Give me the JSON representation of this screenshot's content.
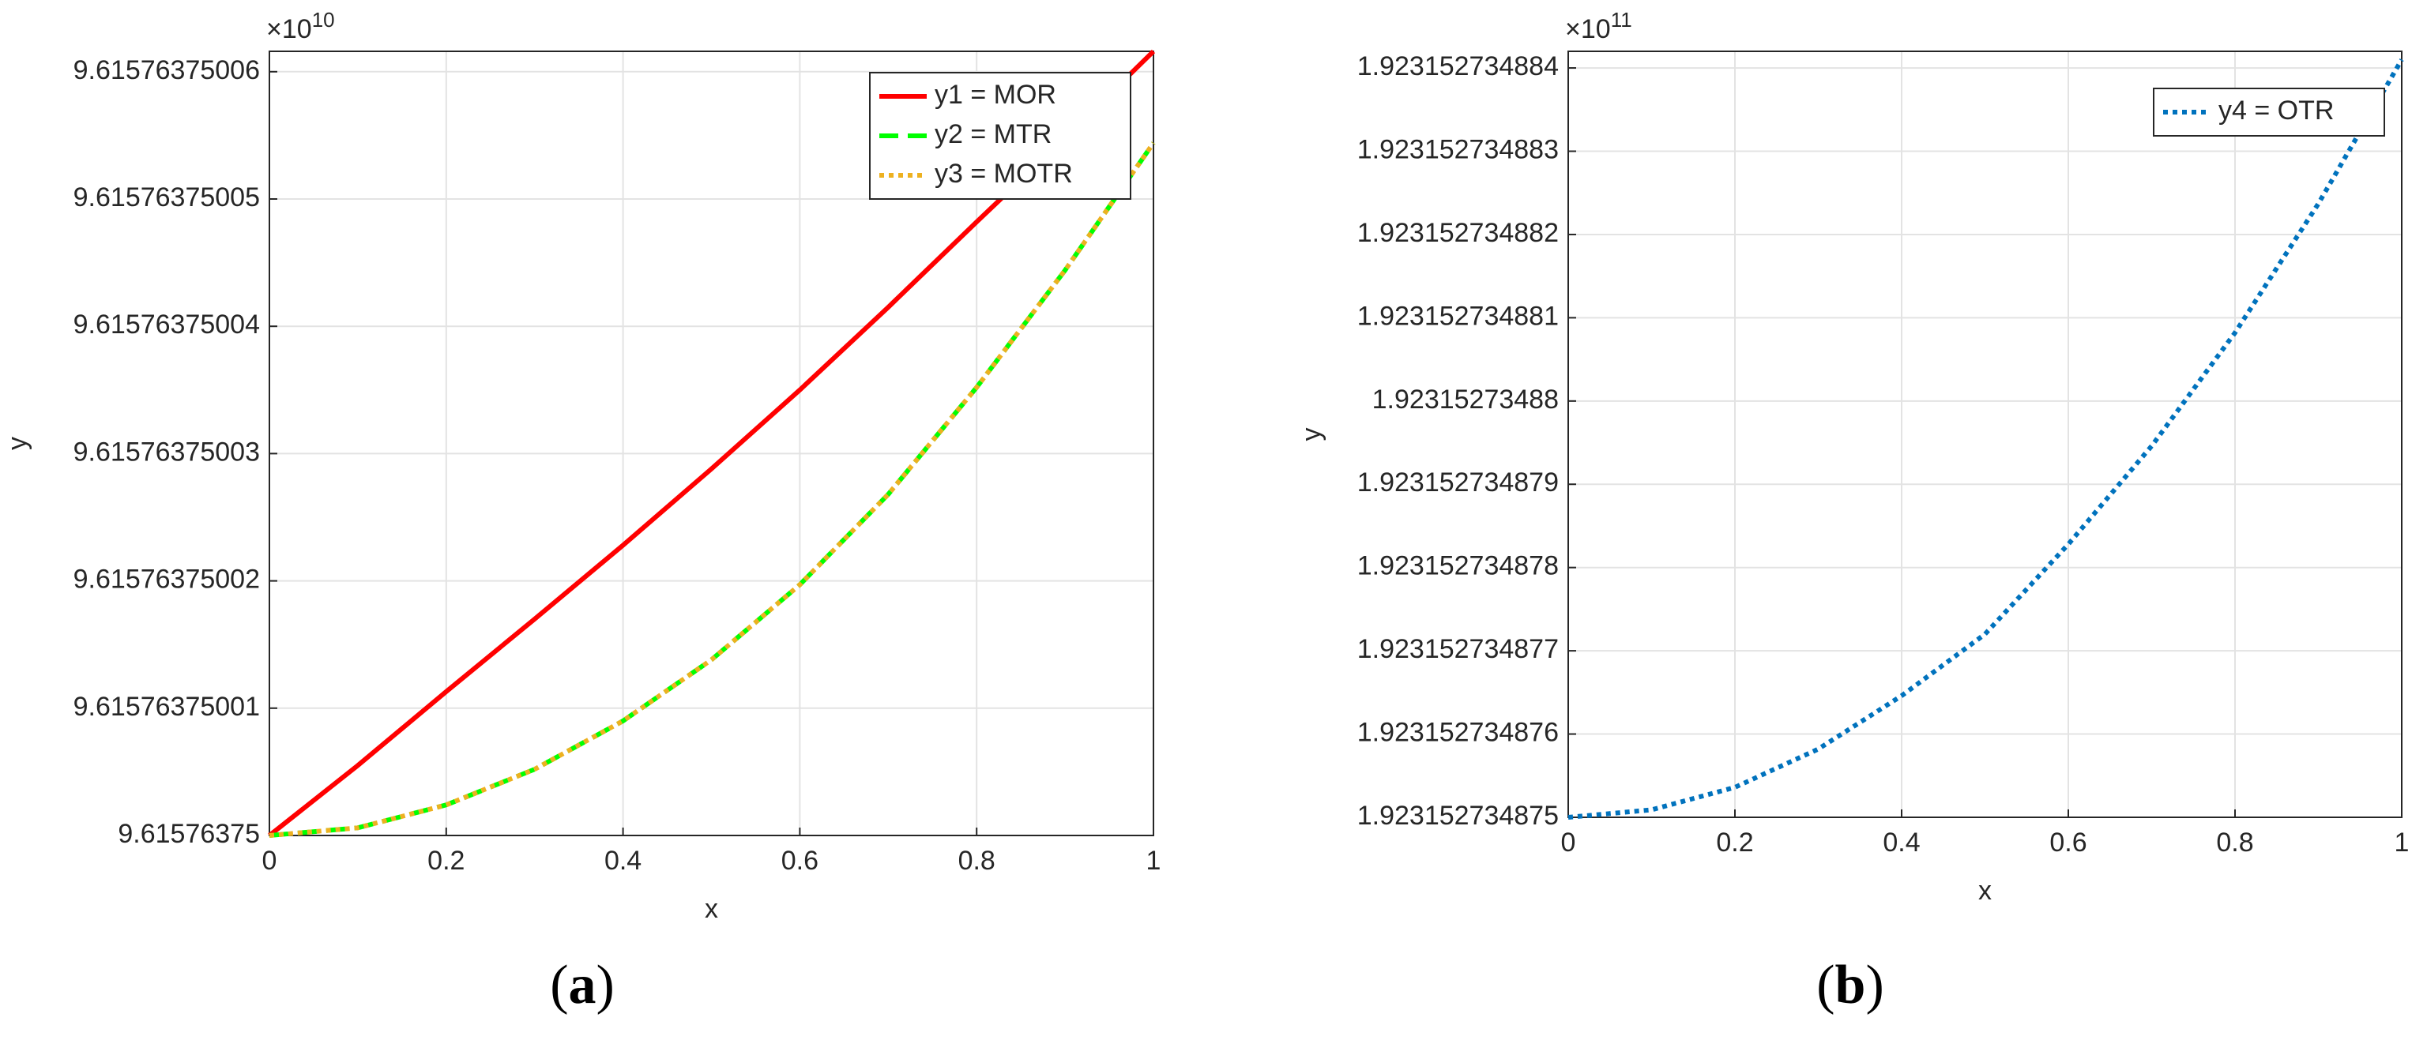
{
  "chart_data": [
    {
      "type": "line",
      "panel_label": [
        "(",
        "a",
        ")"
      ],
      "xlabel": "x",
      "ylabel": "y",
      "y_multiplier": "×10",
      "y_exponent": "10",
      "x": [
        0,
        0.1,
        0.2,
        0.3,
        0.4,
        0.5,
        0.6,
        0.7,
        0.8,
        0.9,
        1
      ],
      "series": [
        {
          "name": "y1 = MOR",
          "color": "#ff0000",
          "line_style": "solid",
          "values": [
            9.61576375,
            9.6157637500055,
            9.6157637500113,
            9.615763750017,
            9.6157637500228,
            9.6157637500288,
            9.615763750035,
            9.6157637500415,
            9.6157637500482,
            9.6157637500548,
            9.6157637500616
          ]
        },
        {
          "name": "y2 = MTR",
          "color": "#00ff00",
          "line_style": "dashed",
          "values": [
            9.61576375,
            9.6157637500006,
            9.6157637500024,
            9.6157637500052,
            9.615763750009,
            9.6157637500138,
            9.6157637500197,
            9.6157637500268,
            9.6157637500352,
            9.6157637500444,
            9.6157637500544
          ]
        },
        {
          "name": "y3 = MOTR",
          "color": "#edb120",
          "line_style": "dotted",
          "values": [
            9.61576375,
            9.6157637500006,
            9.6157637500024,
            9.6157637500052,
            9.615763750009,
            9.6157637500138,
            9.6157637500197,
            9.6157637500268,
            9.6157637500352,
            9.6157637500444,
            9.6157637500544
          ]
        }
      ],
      "xlim": [
        0,
        1
      ],
      "xticks": [
        0,
        0.2,
        0.4,
        0.6,
        0.8,
        1
      ],
      "ylim": [
        9.61576375,
        9.6157637500616
      ],
      "yticks": [
        9.61576375,
        9.61576375001,
        9.61576375002,
        9.61576375003,
        9.61576375004,
        9.61576375005,
        9.61576375006
      ],
      "grid": true,
      "legend": "northeast"
    },
    {
      "type": "line",
      "panel_label": [
        "(",
        "b",
        ")"
      ],
      "xlabel": "x",
      "ylabel": "y",
      "y_multiplier": "×10",
      "y_exponent": "11",
      "x": [
        0,
        0.1,
        0.2,
        0.3,
        0.4,
        0.5,
        0.6,
        0.7,
        0.8,
        0.9,
        1
      ],
      "series": [
        {
          "name": "y4 = OTR",
          "color": "#0072bd",
          "line_style": "dotted",
          "values": [
            1.923152734875,
            1.92315273487509,
            1.92315273487536,
            1.92315273487582,
            1.92315273487646,
            1.9231527348772,
            1.92315273487828,
            1.92315273487946,
            1.92315273488082,
            1.92315273488237,
            1.9231527348841
          ]
        }
      ],
      "xlim": [
        0,
        1
      ],
      "xticks": [
        0,
        0.2,
        0.4,
        0.6,
        0.8,
        1
      ],
      "ylim": [
        1.923152734875,
        1.9231527348842
      ],
      "yticks": [
        1.923152734875,
        1.923152734876,
        1.923152734877,
        1.923152734878,
        1.923152734879,
        1.92315273488,
        1.923152734881,
        1.923152734882,
        1.923152734883,
        1.923152734884
      ],
      "grid": true,
      "legend": "northeast"
    }
  ]
}
